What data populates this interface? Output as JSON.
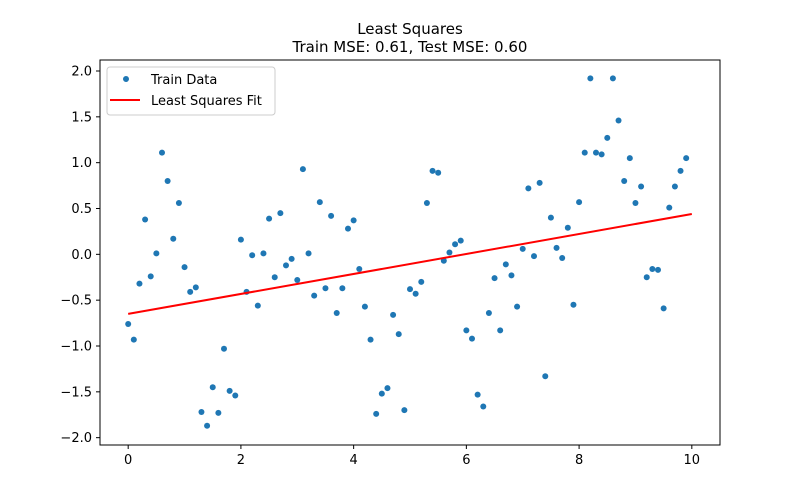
{
  "chart_data": {
    "type": "scatter",
    "title": "Least Squares",
    "subtitle": "Train MSE: 0.61, Test MSE: 0.60",
    "xlabel": "",
    "ylabel": "",
    "xlim": [
      -0.5,
      10.5
    ],
    "ylim": [
      -2.08,
      2.12
    ],
    "xticks": [
      0,
      2,
      4,
      6,
      8,
      10
    ],
    "yticks": [
      -2.0,
      -1.5,
      -1.0,
      -0.5,
      0.0,
      0.5,
      1.0,
      1.5,
      2.0
    ],
    "xtick_labels": [
      "0",
      "2",
      "4",
      "6",
      "8",
      "10"
    ],
    "ytick_labels": [
      "−2.0",
      "−1.5",
      "−1.0",
      "−0.5",
      "0.0",
      "0.5",
      "1.0",
      "1.5",
      "2.0"
    ],
    "grid": false,
    "legend_position": "top-left",
    "series": [
      {
        "name": "Train Data",
        "kind": "scatter",
        "color": "#1f77b4",
        "points": [
          [
            0.0,
            -0.76
          ],
          [
            0.1,
            -0.93
          ],
          [
            0.2,
            -0.32
          ],
          [
            0.3,
            0.38
          ],
          [
            0.4,
            -0.24
          ],
          [
            0.5,
            0.01
          ],
          [
            0.6,
            1.11
          ],
          [
            0.7,
            0.8
          ],
          [
            0.8,
            0.17
          ],
          [
            0.9,
            0.56
          ],
          [
            1.0,
            -0.14
          ],
          [
            1.1,
            -0.41
          ],
          [
            1.2,
            -0.36
          ],
          [
            1.3,
            -1.72
          ],
          [
            1.4,
            -1.87
          ],
          [
            1.5,
            -1.45
          ],
          [
            1.6,
            -1.73
          ],
          [
            1.7,
            -1.03
          ],
          [
            1.8,
            -1.49
          ],
          [
            1.9,
            -1.54
          ],
          [
            2.0,
            0.16
          ],
          [
            2.1,
            -0.41
          ],
          [
            2.2,
            -0.01
          ],
          [
            2.3,
            -0.56
          ],
          [
            2.4,
            0.01
          ],
          [
            2.5,
            0.39
          ],
          [
            2.6,
            -0.25
          ],
          [
            2.7,
            0.45
          ],
          [
            2.8,
            -0.12
          ],
          [
            2.9,
            -0.05
          ],
          [
            3.0,
            -0.28
          ],
          [
            3.1,
            0.93
          ],
          [
            3.2,
            0.01
          ],
          [
            3.3,
            -0.45
          ],
          [
            3.4,
            0.57
          ],
          [
            3.5,
            -0.37
          ],
          [
            3.6,
            0.42
          ],
          [
            3.7,
            -0.64
          ],
          [
            3.8,
            -0.37
          ],
          [
            3.9,
            0.28
          ],
          [
            4.0,
            0.37
          ],
          [
            4.1,
            -0.16
          ],
          [
            4.2,
            -0.57
          ],
          [
            4.3,
            -0.93
          ],
          [
            4.4,
            -1.74
          ],
          [
            4.5,
            -1.52
          ],
          [
            4.6,
            -1.46
          ],
          [
            4.7,
            -0.66
          ],
          [
            4.8,
            -0.87
          ],
          [
            4.9,
            -1.7
          ],
          [
            5.0,
            -0.38
          ],
          [
            5.1,
            -0.43
          ],
          [
            5.2,
            -0.3
          ],
          [
            5.3,
            0.56
          ],
          [
            5.4,
            0.91
          ],
          [
            5.5,
            0.89
          ],
          [
            5.6,
            -0.07
          ],
          [
            5.7,
            0.02
          ],
          [
            5.8,
            0.11
          ],
          [
            5.9,
            0.15
          ],
          [
            6.0,
            -0.83
          ],
          [
            6.1,
            -0.92
          ],
          [
            6.2,
            -1.53
          ],
          [
            6.3,
            -1.66
          ],
          [
            6.4,
            -0.64
          ],
          [
            6.5,
            -0.26
          ],
          [
            6.6,
            -0.83
          ],
          [
            6.7,
            -0.11
          ],
          [
            6.8,
            -0.23
          ],
          [
            6.9,
            -0.57
          ],
          [
            7.0,
            0.06
          ],
          [
            7.1,
            0.72
          ],
          [
            7.2,
            -0.02
          ],
          [
            7.3,
            0.78
          ],
          [
            7.4,
            -1.33
          ],
          [
            7.5,
            0.4
          ],
          [
            7.6,
            0.07
          ],
          [
            7.7,
            -0.04
          ],
          [
            7.8,
            0.29
          ],
          [
            7.9,
            -0.55
          ],
          [
            8.0,
            0.57
          ],
          [
            8.1,
            1.11
          ],
          [
            8.2,
            1.92
          ],
          [
            8.3,
            1.11
          ],
          [
            8.4,
            1.09
          ],
          [
            8.5,
            1.27
          ],
          [
            8.6,
            1.92
          ],
          [
            8.7,
            1.46
          ],
          [
            8.8,
            0.8
          ],
          [
            8.9,
            1.05
          ],
          [
            9.0,
            0.56
          ],
          [
            9.1,
            0.74
          ],
          [
            9.2,
            -0.25
          ],
          [
            9.3,
            -0.16
          ],
          [
            9.4,
            -0.17
          ],
          [
            9.5,
            -0.59
          ],
          [
            9.6,
            0.51
          ],
          [
            9.7,
            0.74
          ],
          [
            9.8,
            0.91
          ],
          [
            9.9,
            1.05
          ]
        ]
      },
      {
        "name": "Least Squares Fit",
        "kind": "line",
        "color": "#ff0000",
        "points": [
          [
            0.0,
            -0.65
          ],
          [
            10.0,
            0.44
          ]
        ]
      }
    ]
  }
}
